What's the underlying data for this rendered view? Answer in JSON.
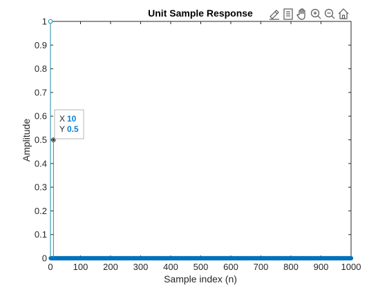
{
  "chart_data": {
    "type": "stem",
    "title": "Unit Sample Response",
    "xlabel": "Sample index (n)",
    "ylabel": "Amplitude",
    "xlim": [
      0,
      1000
    ],
    "ylim": [
      0,
      1
    ],
    "xticks": [
      0,
      100,
      200,
      300,
      400,
      500,
      600,
      700,
      800,
      900,
      1000
    ],
    "yticks": [
      0,
      0.1,
      0.2,
      0.3,
      0.4,
      0.5,
      0.6,
      0.7,
      0.8,
      0.9,
      1
    ],
    "grid": false,
    "series": [
      {
        "description_of_values": "impulse response samples n = 0..1000; nonzero only at n=0 (1) and n=10 (0.5)",
        "n_start": 0,
        "n_end": 1000,
        "nonzero": [
          {
            "x": 0,
            "y": 1
          },
          {
            "x": 10,
            "y": 0.5
          }
        ],
        "color": "#0072bd"
      }
    ],
    "datatip": {
      "x_label": "X",
      "x_value": "10",
      "y_label": "Y",
      "y_value": "0.5"
    }
  },
  "toolbar": {
    "icons": [
      "brush-icon",
      "datatip-icon",
      "pan-icon",
      "zoom-in-icon",
      "zoom-out-icon",
      "home-icon"
    ]
  },
  "colors": {
    "stem": "#0072bd",
    "selected": "#1a8fa0",
    "axis": "#262626"
  }
}
